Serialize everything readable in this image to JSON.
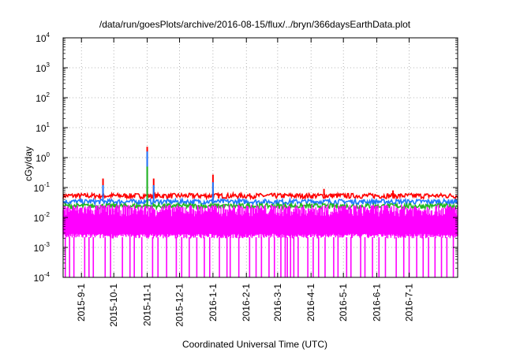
{
  "chart_data": {
    "type": "line",
    "title": "/data/run/goesPlots/archive/2016-08-15/flux/../bryn/366daysEarthData.plot",
    "xlabel": "Coordinated Universal Time (UTC)",
    "ylabel": "cGy/day",
    "yscale": "log",
    "ylim": [
      0.0001,
      10000
    ],
    "xlim": [
      "2015-08-15",
      "2016-08-15"
    ],
    "y_ticks": [
      {
        "base": "10",
        "exp": "-4",
        "value": 0.0001
      },
      {
        "base": "10",
        "exp": "-3",
        "value": 0.001
      },
      {
        "base": "10",
        "exp": "-2",
        "value": 0.01
      },
      {
        "base": "10",
        "exp": "-1",
        "value": 0.1
      },
      {
        "base": "10",
        "exp": "0",
        "value": 1
      },
      {
        "base": "10",
        "exp": "1",
        "value": 10
      },
      {
        "base": "10",
        "exp": "2",
        "value": 100
      },
      {
        "base": "10",
        "exp": "3",
        "value": 1000
      },
      {
        "base": "10",
        "exp": "4",
        "value": 10000
      }
    ],
    "x_ticks": [
      {
        "label": "2015-9-1",
        "date": "2015-09-01"
      },
      {
        "label": "2015-10-1",
        "date": "2015-10-01"
      },
      {
        "label": "2015-11-1",
        "date": "2015-11-01"
      },
      {
        "label": "2015-12-1",
        "date": "2015-12-01"
      },
      {
        "label": "2016-1-1",
        "date": "2016-01-01"
      },
      {
        "label": "2016-2-1",
        "date": "2016-02-01"
      },
      {
        "label": "2016-3-1",
        "date": "2016-03-01"
      },
      {
        "label": "2016-4-1",
        "date": "2016-04-01"
      },
      {
        "label": "2016-5-1",
        "date": "2016-05-01"
      },
      {
        "label": "2016-6-1",
        "date": "2016-06-01"
      },
      {
        "label": "2016-7-1",
        "date": "2016-07-01"
      }
    ],
    "grid": true,
    "series": [
      {
        "color": "#ff0000",
        "baseline": 0.055,
        "spikes": [
          {
            "date": "2015-09-21",
            "value": 0.2
          },
          {
            "date": "2015-11-01",
            "value": 2.3
          },
          {
            "date": "2015-11-07",
            "value": 0.2
          },
          {
            "date": "2016-01-01",
            "value": 0.27
          },
          {
            "date": "2016-04-13",
            "value": 0.09
          },
          {
            "date": "2016-06-16",
            "value": 0.08
          }
        ]
      },
      {
        "color": "#1e78ff",
        "baseline": 0.035,
        "spikes": [
          {
            "date": "2015-09-21",
            "value": 0.12
          },
          {
            "date": "2015-11-01",
            "value": 1.6
          },
          {
            "date": "2015-11-07",
            "value": 0.12
          },
          {
            "date": "2016-01-01",
            "value": 0.15
          }
        ]
      },
      {
        "color": "#1fb81f",
        "baseline": 0.025,
        "spikes": [
          {
            "date": "2015-11-01",
            "value": 0.5
          }
        ]
      },
      {
        "color": "#ff00ff",
        "lower": 0.0022,
        "upper": 0.018,
        "dropout_value": 0.0001,
        "dropout_dates": [
          "2015-08-17",
          "2015-08-21",
          "2015-08-25",
          "2015-09-04",
          "2015-09-08",
          "2015-09-12",
          "2015-09-23",
          "2015-09-28",
          "2015-10-09",
          "2015-10-16",
          "2015-10-20",
          "2015-10-27",
          "2015-11-06",
          "2015-11-11",
          "2015-11-19",
          "2015-11-28",
          "2015-12-03",
          "2015-12-10",
          "2015-12-17",
          "2015-12-24",
          "2015-12-29",
          "2016-01-07",
          "2016-01-14",
          "2016-01-17",
          "2016-01-25",
          "2016-02-04",
          "2016-02-10",
          "2016-02-15",
          "2016-02-22",
          "2016-02-27",
          "2016-03-04",
          "2016-03-08",
          "2016-03-10",
          "2016-03-13",
          "2016-03-16",
          "2016-03-20",
          "2016-03-29",
          "2016-04-03",
          "2016-04-08",
          "2016-04-14",
          "2016-04-22",
          "2016-04-26",
          "2016-05-04",
          "2016-05-08",
          "2016-05-17",
          "2016-05-21",
          "2016-05-28",
          "2016-06-03",
          "2016-06-09",
          "2016-06-19",
          "2016-06-26",
          "2016-07-01",
          "2016-07-08",
          "2016-07-14",
          "2016-07-19",
          "2016-07-25",
          "2016-07-31",
          "2016-08-05",
          "2016-08-11"
        ]
      }
    ]
  }
}
